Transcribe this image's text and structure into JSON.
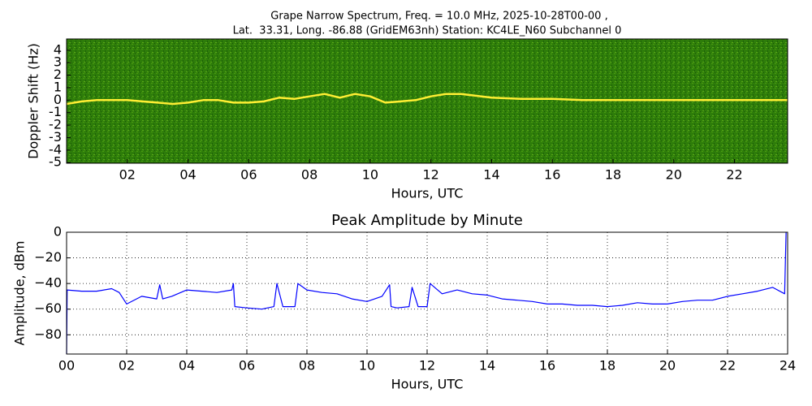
{
  "chart_data": [
    {
      "type": "spectrogram",
      "title": "Grape Narrow Spectrum, Freq. = 10.0 MHz, 2025-10-28T00-00 ,",
      "subtitle": "Lat.  33.31, Long. -86.88 (GridEM63nh) Station: KC4LE_N60 Subchannel 0",
      "xlabel": "Hours, UTC",
      "ylabel": "Doppler Shift (Hz)",
      "background": "#2e7d0a",
      "xlim": [
        0,
        23.75
      ],
      "ylim": [
        -5.05,
        4.9
      ],
      "xticks": [
        {
          "value": 2,
          "label": "02"
        },
        {
          "value": 4,
          "label": "04"
        },
        {
          "value": 6,
          "label": "06"
        },
        {
          "value": 8,
          "label": "08"
        },
        {
          "value": 10,
          "label": "10"
        },
        {
          "value": 12,
          "label": "12"
        },
        {
          "value": 14,
          "label": "14"
        },
        {
          "value": 16,
          "label": "16"
        },
        {
          "value": 18,
          "label": "18"
        },
        {
          "value": 20,
          "label": "20"
        },
        {
          "value": 22,
          "label": "22"
        }
      ],
      "yticks": [
        4,
        3,
        2,
        1,
        0,
        -1,
        -2,
        -3,
        -4,
        -5
      ],
      "grid": false,
      "x": [
        0,
        0.5,
        1,
        1.5,
        2,
        2.5,
        3,
        3.5,
        4,
        4.5,
        5,
        5.5,
        6,
        6.5,
        7,
        7.5,
        8,
        8.5,
        9,
        9.5,
        10,
        10.5,
        11,
        11.5,
        12,
        12.5,
        13,
        14,
        15,
        16,
        17,
        18,
        19,
        20,
        21,
        22,
        23,
        23.75
      ],
      "series": [
        {
          "color": "#ffee33",
          "values": [
            -0.3,
            -0.1,
            0,
            0,
            0,
            -0.1,
            -0.2,
            -0.3,
            -0.2,
            0,
            0,
            -0.2,
            -0.2,
            -0.1,
            0.2,
            0.1,
            0.3,
            0.5,
            0.2,
            0.5,
            0.3,
            -0.2,
            -0.1,
            0,
            0.3,
            0.5,
            0.5,
            0.2,
            0.1,
            0.1,
            0,
            0,
            0,
            0,
            0,
            0,
            0,
            0
          ]
        }
      ]
    },
    {
      "type": "line",
      "title": "Peak Amplitude by Minute",
      "xlabel": "Hours, UTC",
      "ylabel": "Amplitude, dBm",
      "xlim": [
        0,
        24
      ],
      "ylim": [
        -95,
        0
      ],
      "xticks": [
        {
          "value": 0,
          "label": "00"
        },
        {
          "value": 2,
          "label": "02"
        },
        {
          "value": 4,
          "label": "04"
        },
        {
          "value": 6,
          "label": "06"
        },
        {
          "value": 8,
          "label": "08"
        },
        {
          "value": 10,
          "label": "10"
        },
        {
          "value": 12,
          "label": "12"
        },
        {
          "value": 14,
          "label": "14"
        },
        {
          "value": 16,
          "label": "16"
        },
        {
          "value": 18,
          "label": "18"
        },
        {
          "value": 20,
          "label": "20"
        },
        {
          "value": 22,
          "label": "22"
        },
        {
          "value": 24,
          "label": "24"
        }
      ],
      "yticks": [
        0,
        {
          "value": -20,
          "label": "−20"
        },
        {
          "value": -40,
          "label": "−40"
        },
        {
          "value": -60,
          "label": "−60"
        },
        {
          "value": -80,
          "label": "−80"
        }
      ],
      "grid": true,
      "x": [
        0,
        0.02,
        0.5,
        1,
        1.5,
        1.75,
        2,
        2.5,
        3,
        3.1,
        3.2,
        3.5,
        4,
        4.5,
        5,
        5.5,
        5.55,
        5.6,
        6,
        6.5,
        6.9,
        7,
        7.2,
        7.6,
        7.7,
        8,
        8.5,
        9,
        9.5,
        10,
        10.5,
        10.75,
        10.8,
        11,
        11.4,
        11.5,
        11.7,
        12,
        12.1,
        12.5,
        13,
        13.5,
        14,
        14.5,
        15,
        15.5,
        16,
        16.5,
        17,
        17.5,
        18,
        18.5,
        19,
        19.5,
        20,
        20.5,
        21,
        21.5,
        22,
        22.5,
        23,
        23.5,
        23.9,
        23.95
      ],
      "series": [
        {
          "color": "#0000ff",
          "values": [
            -95,
            -45,
            -46,
            -46,
            -44,
            -47,
            -56,
            -50,
            -52,
            -41,
            -52,
            -50,
            -45,
            -46,
            -47,
            -45,
            -40,
            -58,
            -59,
            -60,
            -58,
            -40,
            -58,
            -58,
            -40,
            -45,
            -47,
            -48,
            -52,
            -54,
            -50,
            -41,
            -58,
            -59,
            -58,
            -43,
            -58,
            -58,
            -40,
            -48,
            -45,
            -48,
            -49,
            -52,
            -53,
            -54,
            -56,
            -56,
            -57,
            -57,
            -58,
            -57,
            -55,
            -56,
            -56,
            -54,
            -53,
            -53,
            -50,
            -48,
            -46,
            -43,
            -48,
            0
          ]
        }
      ]
    }
  ]
}
